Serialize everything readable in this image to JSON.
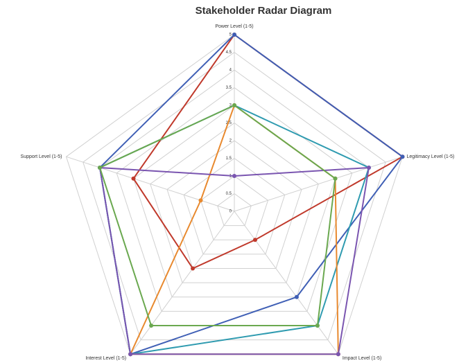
{
  "chart_data": {
    "type": "radar",
    "title": "Stakeholder Radar Diagram",
    "categories": [
      "Power Level (1-5)",
      "Legitimacy Level (1-5)",
      "Impact Level (1-5)",
      "Interest Level (1-5)",
      "Support Level (1-5)"
    ],
    "rlim": [
      0,
      5
    ],
    "rticks": [
      0,
      0.5,
      1,
      1.5,
      2,
      2.5,
      3,
      3.5,
      4,
      4.5,
      5
    ],
    "grid": true,
    "series": [
      {
        "color": "#c0392b",
        "values": [
          5,
          5,
          1,
          2,
          3
        ]
      },
      {
        "color": "#3f5fb5",
        "values": [
          5,
          5,
          3,
          5,
          4
        ]
      },
      {
        "color": "#2f9bb0",
        "values": [
          3,
          4,
          4,
          5,
          4
        ]
      },
      {
        "color": "#e8892e",
        "values": [
          3,
          3,
          5,
          5,
          1
        ]
      },
      {
        "color": "#7a55b0",
        "values": [
          1,
          4,
          5,
          5,
          4
        ]
      },
      {
        "color": "#6aa84f",
        "values": [
          3,
          3,
          4,
          4,
          4
        ]
      }
    ]
  }
}
